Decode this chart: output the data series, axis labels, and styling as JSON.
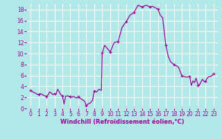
{
  "title": "",
  "xlabel": "Windchill (Refroidissement éolien,°C)",
  "ylabel": "",
  "bg_color": "#b2e8e8",
  "grid_color": "#c8e8e8",
  "line_color": "#990099",
  "marker_color": "#990099",
  "xlim": [
    -0.5,
    23.5
  ],
  "ylim": [
    0,
    19
  ],
  "yticks": [
    0,
    2,
    4,
    6,
    8,
    10,
    12,
    14,
    16,
    18
  ],
  "xticks": [
    0,
    1,
    2,
    3,
    4,
    5,
    6,
    7,
    8,
    9,
    10,
    11,
    12,
    13,
    14,
    15,
    16,
    17,
    18,
    19,
    20,
    21,
    22,
    23
  ],
  "x": [
    0,
    0.2,
    0.4,
    0.6,
    0.8,
    1.0,
    1.2,
    1.4,
    1.6,
    1.8,
    2.0,
    2.2,
    2.4,
    2.6,
    2.8,
    3.0,
    3.2,
    3.4,
    3.6,
    3.8,
    4.0,
    4.2,
    4.4,
    4.6,
    4.8,
    5.0,
    5.2,
    5.4,
    5.6,
    5.8,
    6.0,
    6.2,
    6.4,
    6.6,
    6.8,
    7.0,
    7.2,
    7.5,
    7.8,
    8.0,
    8.3,
    8.6,
    8.9,
    9.0,
    9.3,
    9.6,
    10.0,
    10.5,
    11.0,
    11.5,
    12.0,
    12.5,
    13.0,
    13.5,
    14.0,
    14.5,
    15.0,
    15.3,
    15.6,
    16.0,
    16.3,
    16.6,
    17.0,
    17.3,
    17.6,
    18.0,
    18.3,
    18.6,
    19.0,
    19.3,
    19.6,
    20.0,
    20.2,
    20.4,
    20.6,
    20.8,
    21.0,
    21.2,
    21.4,
    21.6,
    21.8,
    22.0,
    22.2,
    22.4,
    22.6,
    22.8,
    23.0
  ],
  "y": [
    3.3,
    3.1,
    2.9,
    2.8,
    2.6,
    2.5,
    2.7,
    2.6,
    2.4,
    2.3,
    2.2,
    2.5,
    3.0,
    2.8,
    2.5,
    2.7,
    2.6,
    3.5,
    3.0,
    2.5,
    2.3,
    0.8,
    2.2,
    2.3,
    2.2,
    2.2,
    2.0,
    2.2,
    2.0,
    1.9,
    2.1,
    1.9,
    1.7,
    1.5,
    1.3,
    0.5,
    0.8,
    1.0,
    1.5,
    3.2,
    3.0,
    3.5,
    3.3,
    10.1,
    11.5,
    11.0,
    10.3,
    12.0,
    12.2,
    14.8,
    15.8,
    17.0,
    17.5,
    18.8,
    18.5,
    18.8,
    18.5,
    18.6,
    18.4,
    18.1,
    17.0,
    16.5,
    11.5,
    9.5,
    8.5,
    8.0,
    7.8,
    7.5,
    6.0,
    5.8,
    5.7,
    5.8,
    4.2,
    5.0,
    4.7,
    5.5,
    4.5,
    4.2,
    4.8,
    5.3,
    4.9,
    5.0,
    5.5,
    5.8,
    5.8,
    6.0,
    6.3
  ],
  "marker_x": [
    0,
    1,
    2,
    3,
    4,
    5,
    6,
    7,
    8,
    9,
    10,
    11,
    12,
    13,
    14,
    15,
    16,
    17,
    18,
    19,
    20,
    21,
    22,
    23
  ],
  "marker_y": [
    3.3,
    2.5,
    2.2,
    2.7,
    2.3,
    2.2,
    2.1,
    0.5,
    3.2,
    10.1,
    10.3,
    12.2,
    15.8,
    17.5,
    18.5,
    18.5,
    18.1,
    11.5,
    8.0,
    6.0,
    5.8,
    4.2,
    5.0,
    6.3
  ]
}
